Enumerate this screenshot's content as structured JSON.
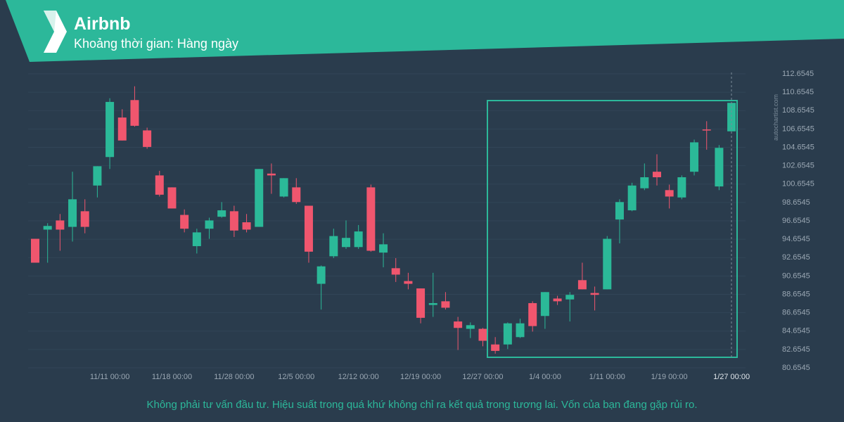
{
  "header": {
    "title": "Airbnb",
    "subtitle": "Khoảng thời gian: Hàng ngày"
  },
  "chart_data": {
    "type": "candlestick",
    "categories": [
      null,
      null,
      null,
      null,
      null,
      null,
      "11/11 00:00",
      null,
      null,
      null,
      null,
      "11/18 00:00",
      null,
      null,
      null,
      null,
      "11/28 00:00",
      null,
      null,
      null,
      null,
      "12/5 00:00",
      null,
      null,
      null,
      null,
      "12/12 00:00",
      null,
      null,
      null,
      null,
      "12/19 00:00",
      null,
      null,
      null,
      null,
      "12/27 00:00",
      null,
      null,
      null,
      null,
      "1/4 00:00",
      null,
      null,
      null,
      null,
      "1/11 00:00",
      null,
      null,
      null,
      null,
      "1/19 00:00",
      null,
      null,
      null,
      null,
      "1/27 00:00"
    ],
    "open": [
      94.7,
      95.7,
      96.7,
      96.0,
      97.7,
      100.5,
      103.6,
      107.9,
      109.8,
      106.5,
      101.6,
      100.3,
      97.3,
      93.9,
      95.8,
      97.1,
      97.7,
      96.5,
      96.0,
      101.8,
      99.3,
      100.3,
      98.3,
      89.8,
      92.8,
      93.8,
      93.8,
      100.3,
      93.2,
      91.5,
      90.1,
      89.3,
      87.5,
      87.9,
      85.7,
      84.9,
      84.9,
      83.2,
      83.2,
      84.0,
      87.7,
      86.3,
      88.2,
      88.1,
      90.2,
      88.8,
      89.2,
      96.8,
      97.8,
      100.2,
      102.0,
      100.0,
      99.2,
      102.0,
      106.6,
      100.4,
      106.4
    ],
    "high": [
      94.7,
      96.4,
      97.4,
      102.0,
      99.0,
      102.6,
      110.0,
      108.8,
      111.3,
      106.8,
      102.1,
      100.3,
      97.9,
      95.8,
      97.0,
      98.7,
      98.3,
      97.4,
      102.3,
      102.9,
      101.3,
      101.3,
      98.3,
      91.8,
      95.8,
      96.7,
      96.2,
      100.6,
      95.3,
      92.6,
      91.0,
      89.3,
      91.0,
      88.9,
      86.2,
      85.6,
      85.0,
      84.0,
      85.6,
      86.0,
      87.9,
      88.9,
      88.5,
      88.9,
      92.1,
      89.5,
      95.0,
      99.0,
      100.8,
      102.9,
      103.9,
      100.6,
      101.6,
      105.5,
      107.5,
      104.9,
      109.5
    ],
    "low": [
      92.1,
      92.1,
      93.4,
      94.4,
      95.3,
      99.2,
      102.3,
      105.4,
      106.9,
      104.5,
      99.3,
      98.0,
      95.4,
      93.1,
      94.7,
      97.0,
      94.9,
      95.4,
      96.0,
      99.6,
      99.2,
      98.5,
      92.1,
      87.0,
      92.6,
      93.6,
      93.6,
      93.3,
      91.6,
      90.0,
      89.2,
      85.5,
      86.2,
      87.0,
      82.6,
      83.9,
      83.0,
      82.2,
      82.7,
      83.9,
      84.6,
      84.9,
      87.5,
      85.7,
      89.2,
      86.9,
      89.2,
      94.2,
      97.7,
      100.0,
      100.5,
      98.0,
      99.0,
      101.6,
      104.4,
      100.0,
      106.4
    ],
    "close": [
      92.1,
      96.1,
      95.7,
      99.0,
      96.0,
      102.6,
      109.6,
      105.4,
      107.0,
      104.7,
      99.5,
      98.0,
      95.8,
      95.4,
      96.7,
      97.8,
      95.6,
      95.7,
      102.3,
      101.6,
      101.3,
      98.7,
      93.3,
      91.7,
      95.0,
      94.8,
      95.5,
      93.4,
      94.1,
      90.8,
      89.8,
      86.1,
      87.7,
      87.2,
      85.0,
      85.3,
      83.6,
      82.5,
      85.5,
      85.5,
      85.2,
      88.9,
      87.9,
      88.6,
      89.2,
      88.6,
      94.7,
      98.7,
      100.5,
      101.4,
      101.4,
      99.3,
      101.4,
      105.2,
      106.5,
      104.6,
      109.5
    ],
    "up_color": "#2bb998",
    "down_color": "#f0566e",
    "ylim": [
      80.6545,
      112.6545
    ],
    "yticks": [
      80.6545,
      82.6545,
      84.6545,
      86.6545,
      88.6545,
      90.6545,
      92.6545,
      94.6545,
      96.6545,
      98.6545,
      100.6545,
      102.6545,
      104.6545,
      106.6545,
      108.6545,
      110.6545,
      112.6545
    ],
    "grid": true,
    "watermark": "autochartist.com"
  },
  "footer": {
    "disclaimer": "Không phải tư vấn đầu tư. Hiệu suất trong quá khứ không chỉ ra kết quả trong tương lai. Vốn của bạn đang gặp rủi ro."
  }
}
